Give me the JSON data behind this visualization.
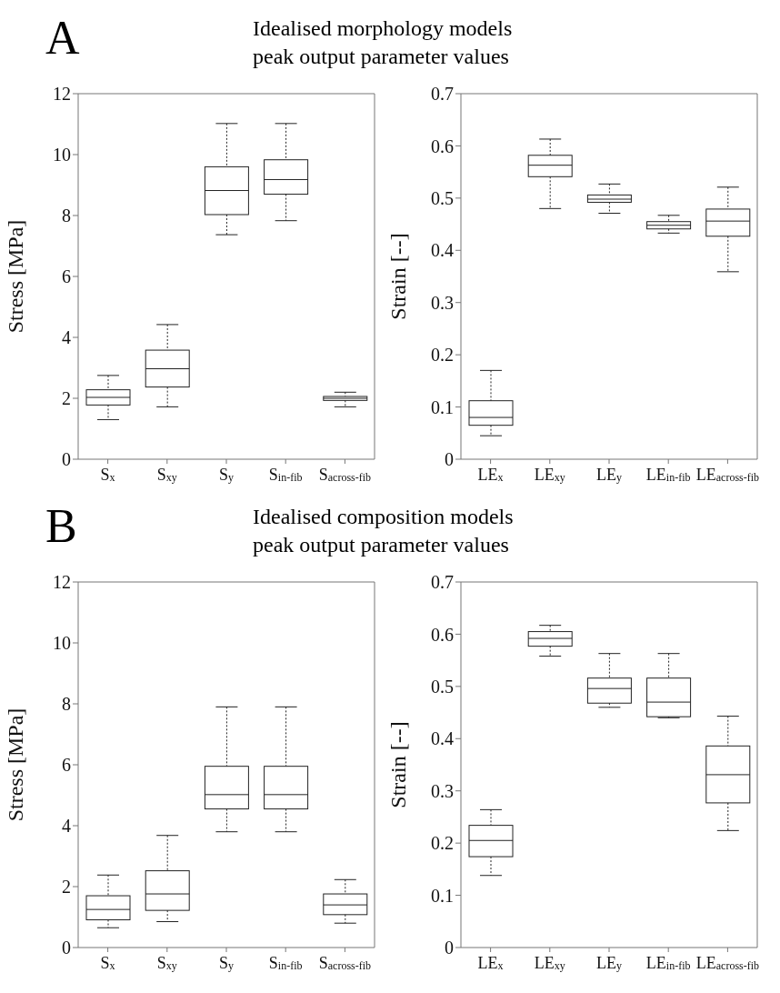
{
  "chart_data": [
    {
      "type": "box",
      "title": "Idealised morphology models",
      "subtitle": "peak output parameter values",
      "annotations": [
        "A"
      ],
      "ylabel": "Stress [MPa]",
      "categories": [
        "S$_{x}$",
        "S$_{xy}$",
        "S$_{y}$",
        "S$_{in-fib}$",
        "S$_{across-fib}$"
      ],
      "ylim": [
        0,
        12
      ],
      "yticks": [
        0,
        2,
        4,
        6,
        8,
        10,
        12
      ],
      "grid": false,
      "boxes": [
        {
          "low": 1.3,
          "q1": 1.78,
          "median": 2.03,
          "q3": 2.28,
          "high": 2.75
        },
        {
          "low": 1.72,
          "q1": 2.37,
          "median": 2.97,
          "q3": 3.58,
          "high": 4.42
        },
        {
          "low": 7.37,
          "q1": 8.03,
          "median": 8.82,
          "q3": 9.6,
          "high": 11.02
        },
        {
          "low": 7.83,
          "q1": 8.7,
          "median": 9.18,
          "q3": 9.83,
          "high": 11.02
        },
        {
          "low": 1.72,
          "q1": 1.93,
          "median": 2.0,
          "q3": 2.06,
          "high": 2.2
        }
      ]
    },
    {
      "type": "box",
      "ylabel": "Strain [--]",
      "categories": [
        "LE$_{x}$",
        "LE$_{xy}$",
        "LE$_{y}$",
        "LE$_{in-fib}$",
        "LE$_{across-fib}$"
      ],
      "ylim": [
        0,
        0.7
      ],
      "yticks": [
        0,
        0.1,
        0.2,
        0.3,
        0.4,
        0.5,
        0.6,
        0.7
      ],
      "grid": false,
      "boxes": [
        {
          "low": 0.045,
          "q1": 0.065,
          "median": 0.08,
          "q3": 0.112,
          "high": 0.17
        },
        {
          "low": 0.48,
          "q1": 0.541,
          "median": 0.563,
          "q3": 0.582,
          "high": 0.613
        },
        {
          "low": 0.471,
          "q1": 0.492,
          "median": 0.498,
          "q3": 0.506,
          "high": 0.527
        },
        {
          "low": 0.433,
          "q1": 0.441,
          "median": 0.448,
          "q3": 0.455,
          "high": 0.467
        },
        {
          "low": 0.359,
          "q1": 0.427,
          "median": 0.456,
          "q3": 0.479,
          "high": 0.521
        }
      ]
    },
    {
      "type": "box",
      "title": "Idealised composition models",
      "subtitle": "peak output parameter values",
      "annotations": [
        "B"
      ],
      "ylabel": "Stress [MPa]",
      "categories": [
        "S$_{x}$",
        "S$_{xy}$",
        "S$_{y}$",
        "S$_{in-fib}$",
        "S$_{across-fib}$"
      ],
      "ylim": [
        0,
        12
      ],
      "yticks": [
        0,
        2,
        4,
        6,
        8,
        10,
        12
      ],
      "grid": false,
      "boxes": [
        {
          "low": 0.65,
          "q1": 0.91,
          "median": 1.25,
          "q3": 1.7,
          "high": 2.38
        },
        {
          "low": 0.85,
          "q1": 1.22,
          "median": 1.76,
          "q3": 2.52,
          "high": 3.68
        },
        {
          "low": 3.8,
          "q1": 4.55,
          "median": 5.02,
          "q3": 5.95,
          "high": 7.9
        },
        {
          "low": 3.8,
          "q1": 4.55,
          "median": 5.02,
          "q3": 5.95,
          "high": 7.9
        },
        {
          "low": 0.8,
          "q1": 1.08,
          "median": 1.4,
          "q3": 1.76,
          "high": 2.23
        }
      ]
    },
    {
      "type": "box",
      "ylabel": "Strain [--]",
      "categories": [
        "LE$_{x}$",
        "LE$_{xy}$",
        "LE$_{y}$",
        "LE$_{in-fib}$",
        "LE$_{across-fib}$"
      ],
      "ylim": [
        0,
        0.7
      ],
      "yticks": [
        0,
        0.1,
        0.2,
        0.3,
        0.4,
        0.5,
        0.6,
        0.7
      ],
      "grid": false,
      "boxes": [
        {
          "low": 0.138,
          "q1": 0.174,
          "median": 0.205,
          "q3": 0.234,
          "high": 0.264
        },
        {
          "low": 0.558,
          "q1": 0.577,
          "median": 0.592,
          "q3": 0.605,
          "high": 0.617
        },
        {
          "low": 0.46,
          "q1": 0.468,
          "median": 0.496,
          "q3": 0.516,
          "high": 0.563
        },
        {
          "low": 0.44,
          "q1": 0.442,
          "median": 0.47,
          "q3": 0.516,
          "high": 0.563
        },
        {
          "low": 0.224,
          "q1": 0.277,
          "median": 0.331,
          "q3": 0.386,
          "high": 0.443
        }
      ]
    }
  ]
}
